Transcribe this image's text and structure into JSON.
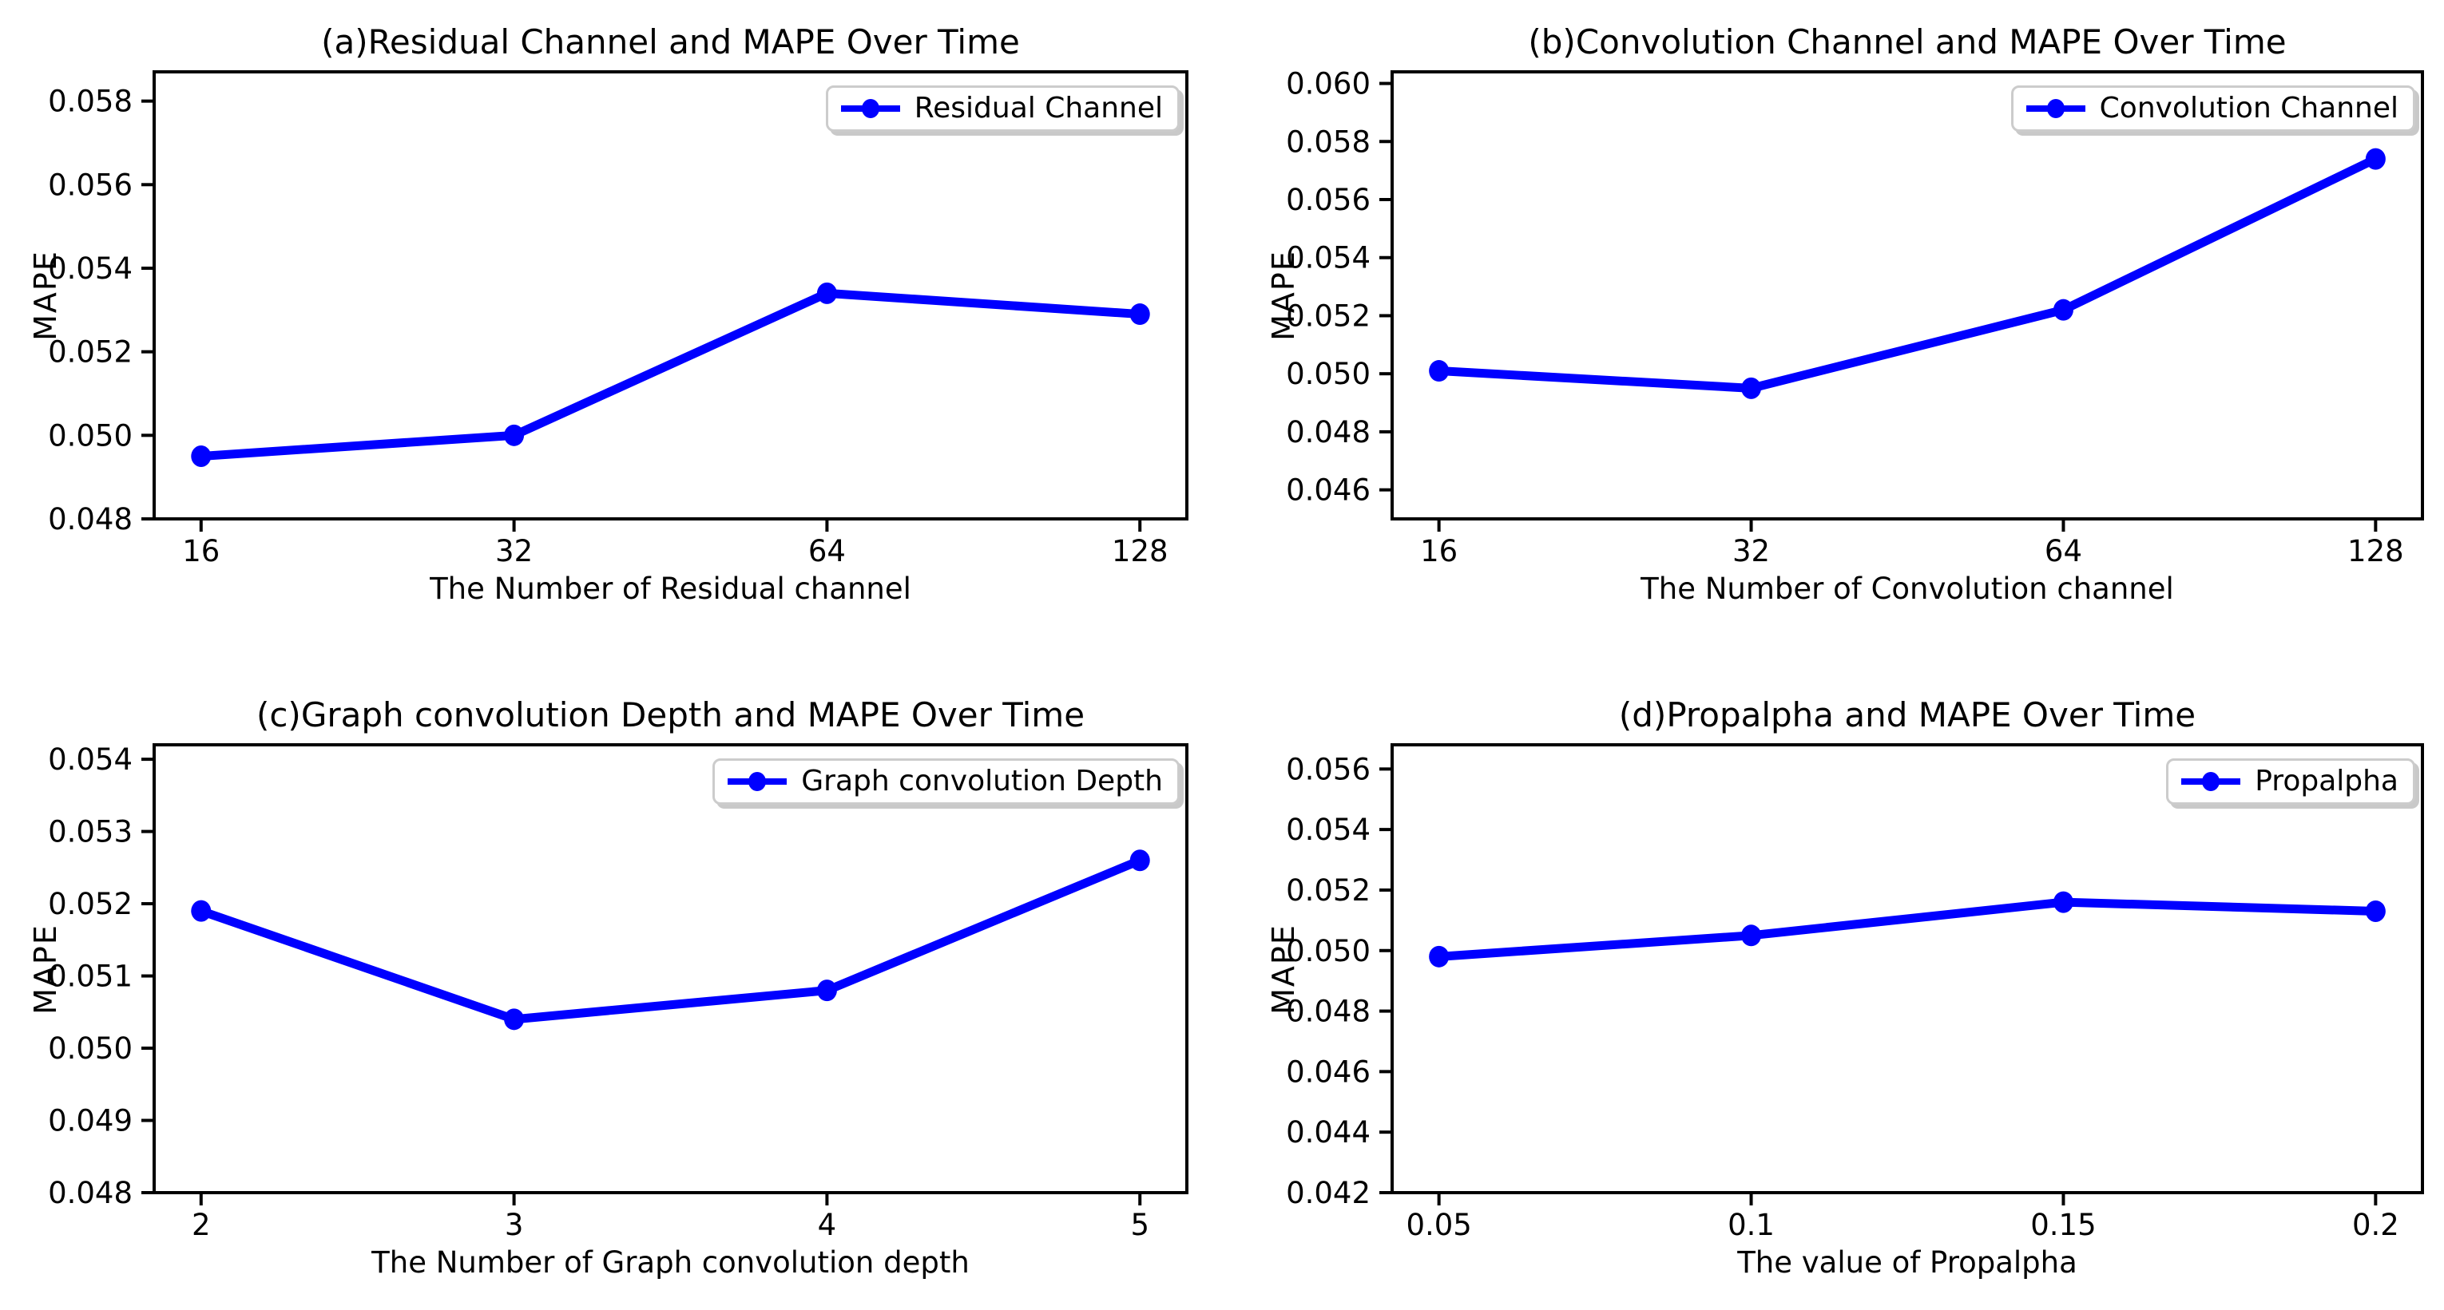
{
  "figure": {
    "background_color": "#ffffff",
    "accent_color": "#0000ff",
    "text_color": "#000000"
  },
  "chart_data": [
    {
      "type": "line",
      "panel": "a",
      "title": "(a)Residual Channel and MAPE Over Time",
      "xlabel": "The Number of Residual channel",
      "ylabel": "MAPE",
      "legend": {
        "label": "Residual Channel",
        "position": "upper right"
      },
      "categories": [
        "16",
        "32",
        "64",
        "128"
      ],
      "values": [
        0.0495,
        0.05,
        0.0534,
        0.0529
      ],
      "yticks": [
        0.048,
        0.05,
        0.052,
        0.054,
        0.056,
        0.058
      ],
      "ytick_labels": [
        "0.048",
        "0.050",
        "0.052",
        "0.054",
        "0.056",
        "0.058"
      ],
      "ylim": [
        0.048,
        0.0587
      ],
      "line_color": "#0000ff",
      "marker": "circle",
      "grid": false
    },
    {
      "type": "line",
      "panel": "b",
      "title": "(b)Convolution Channel and MAPE Over Time",
      "xlabel": "The Number of Convolution channel",
      "ylabel": "MAPE",
      "legend": {
        "label": "Convolution Channel",
        "position": "upper right"
      },
      "categories": [
        "16",
        "32",
        "64",
        "128"
      ],
      "values": [
        0.0501,
        0.0495,
        0.0522,
        0.0574
      ],
      "yticks": [
        0.046,
        0.048,
        0.05,
        0.052,
        0.054,
        0.056,
        0.058,
        0.06
      ],
      "ytick_labels": [
        "0.046",
        "0.048",
        "0.050",
        "0.052",
        "0.054",
        "0.056",
        "0.058",
        "0.060"
      ],
      "ylim": [
        0.045,
        0.0604
      ],
      "line_color": "#0000ff",
      "marker": "circle",
      "grid": false
    },
    {
      "type": "line",
      "panel": "c",
      "title": "(c)Graph convolution Depth and MAPE Over Time",
      "xlabel": "The Number of Graph convolution depth",
      "ylabel": "MAPE",
      "legend": {
        "label": "Graph convolution Depth",
        "position": "upper right"
      },
      "categories": [
        "2",
        "3",
        "4",
        "5"
      ],
      "values": [
        0.0519,
        0.0504,
        0.0508,
        0.0526
      ],
      "yticks": [
        0.048,
        0.049,
        0.05,
        0.051,
        0.052,
        0.053,
        0.054
      ],
      "ytick_labels": [
        "0.048",
        "0.049",
        "0.050",
        "0.051",
        "0.052",
        "0.053",
        "0.054"
      ],
      "ylim": [
        0.048,
        0.0542
      ],
      "line_color": "#0000ff",
      "marker": "circle",
      "grid": false
    },
    {
      "type": "line",
      "panel": "d",
      "title": "(d)Propalpha and MAPE Over Time",
      "xlabel": "The value of Propalpha",
      "ylabel": "MAPE",
      "legend": {
        "label": "Propalpha",
        "position": "upper right"
      },
      "categories": [
        "0.05",
        "0.1",
        "0.15",
        "0.2"
      ],
      "values": [
        0.0498,
        0.0505,
        0.0516,
        0.0513
      ],
      "yticks": [
        0.042,
        0.044,
        0.046,
        0.048,
        0.05,
        0.052,
        0.054,
        0.056
      ],
      "ytick_labels": [
        "0.042",
        "0.044",
        "0.046",
        "0.048",
        "0.050",
        "0.052",
        "0.054",
        "0.056"
      ],
      "ylim": [
        0.042,
        0.0568
      ],
      "line_color": "#0000ff",
      "marker": "circle",
      "grid": false
    }
  ]
}
